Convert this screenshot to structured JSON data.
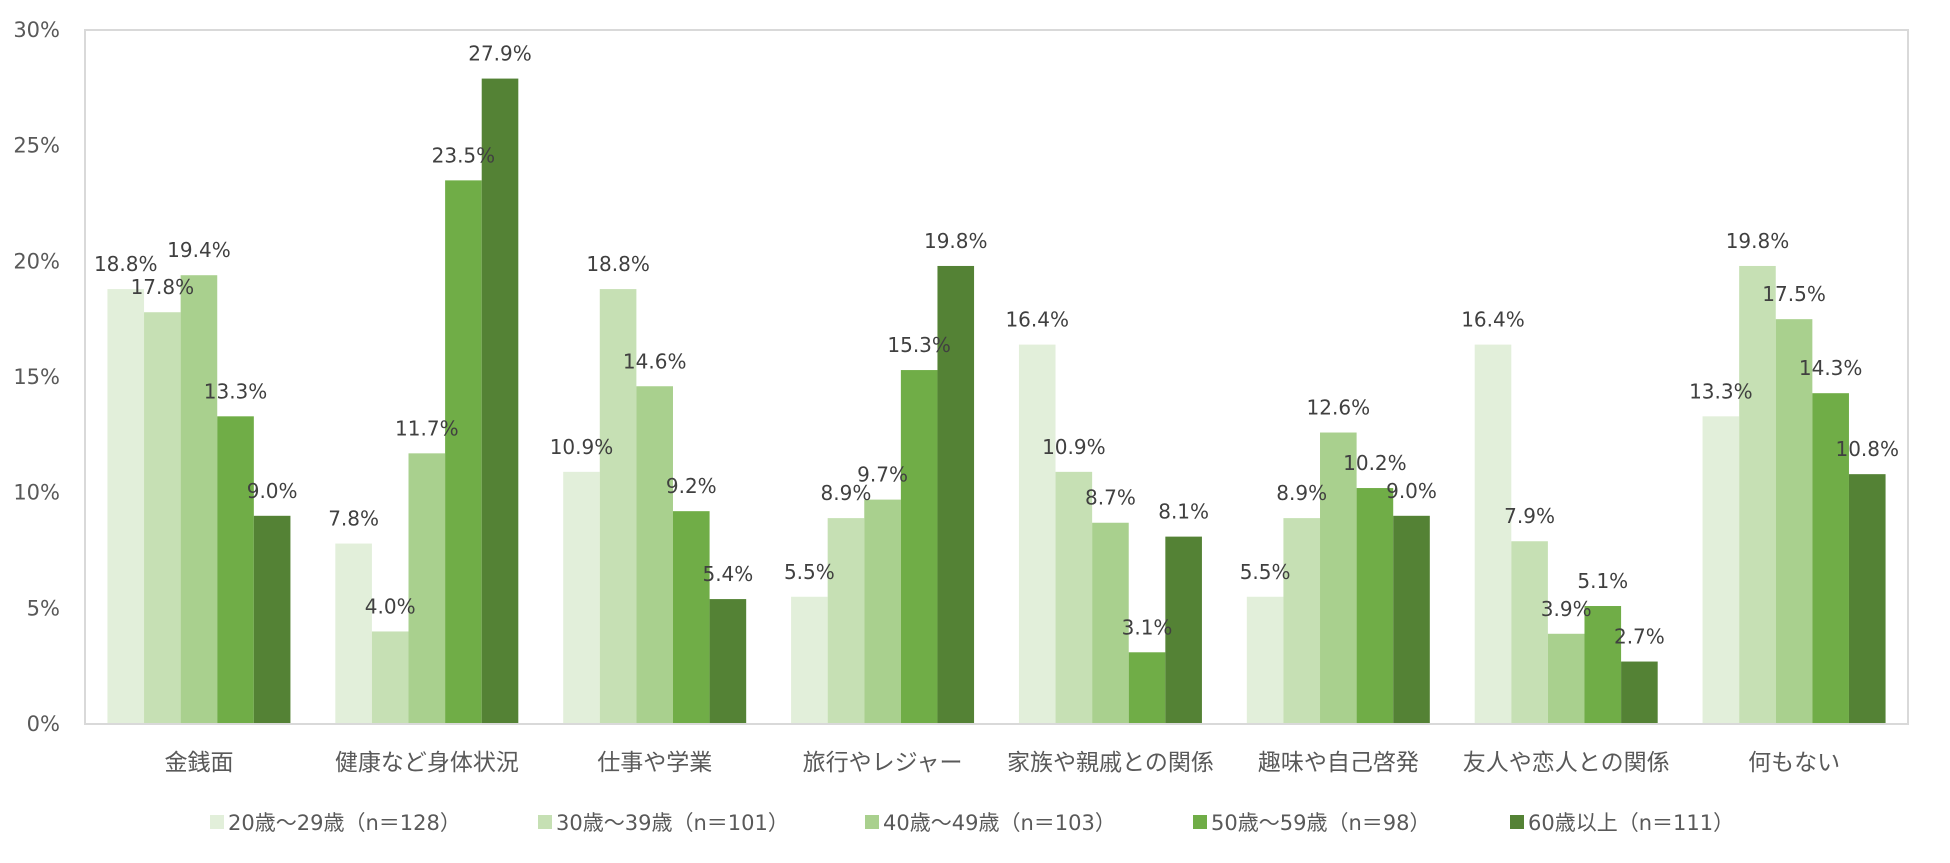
{
  "chart_data": {
    "type": "bar",
    "title": "",
    "xlabel": "",
    "ylabel": "",
    "ylim": [
      0,
      30
    ],
    "yticks": [
      "0%",
      "5%",
      "10%",
      "15%",
      "20%",
      "25%",
      "30%"
    ],
    "ytick_values": [
      0,
      5,
      10,
      15,
      20,
      25,
      30
    ],
    "grid": false,
    "legend_position": "bottom",
    "categories": [
      "金銭面",
      "健康など身体状況",
      "仕事や学業",
      "旅行やレジャー",
      "家族や親戚との関係",
      "趣味や自己啓発",
      "友人や恋人との関係",
      "何もない"
    ],
    "series": [
      {
        "name": "20歳〜29歳（n＝128）",
        "color": "#e2efda",
        "values": [
          18.8,
          7.8,
          10.9,
          5.5,
          16.4,
          5.5,
          16.4,
          13.3
        ],
        "labels": [
          "18.8%",
          "7.8%",
          "10.9%",
          "5.5%",
          "16.4%",
          "5.5%",
          "16.4%",
          "13.3%"
        ]
      },
      {
        "name": "30歳〜39歳（n＝101）",
        "color": "#c6e0b4",
        "values": [
          17.8,
          4.0,
          18.8,
          8.9,
          10.9,
          8.9,
          7.9,
          19.8
        ],
        "labels": [
          "17.8%",
          "4.0%",
          "18.8%",
          "8.9%",
          "10.9%",
          "8.9%",
          "7.9%",
          "19.8%"
        ]
      },
      {
        "name": "40歳〜49歳（n＝103）",
        "color": "#a9d08e",
        "values": [
          19.4,
          11.7,
          14.6,
          9.7,
          8.7,
          12.6,
          3.9,
          17.5
        ],
        "labels": [
          "19.4%",
          "11.7%",
          "14.6%",
          "9.7%",
          "8.7%",
          "12.6%",
          "3.9%",
          "17.5%"
        ]
      },
      {
        "name": "50歳〜59歳（n＝98）",
        "color": "#70ad47",
        "values": [
          13.3,
          23.5,
          9.2,
          15.3,
          3.1,
          10.2,
          5.1,
          14.3
        ],
        "labels": [
          "13.3%",
          "23.5%",
          "9.2%",
          "15.3%",
          "3.1%",
          "10.2%",
          "5.1%",
          "14.3%"
        ]
      },
      {
        "name": "60歳以上（n＝111）",
        "color": "#548235",
        "values": [
          9.0,
          27.9,
          5.4,
          19.8,
          8.1,
          9.0,
          2.7,
          10.8
        ],
        "labels": [
          "9.0%",
          "27.9%",
          "5.4%",
          "19.8%",
          "8.1%",
          "9.0%",
          "2.7%",
          "10.8%"
        ]
      }
    ]
  }
}
